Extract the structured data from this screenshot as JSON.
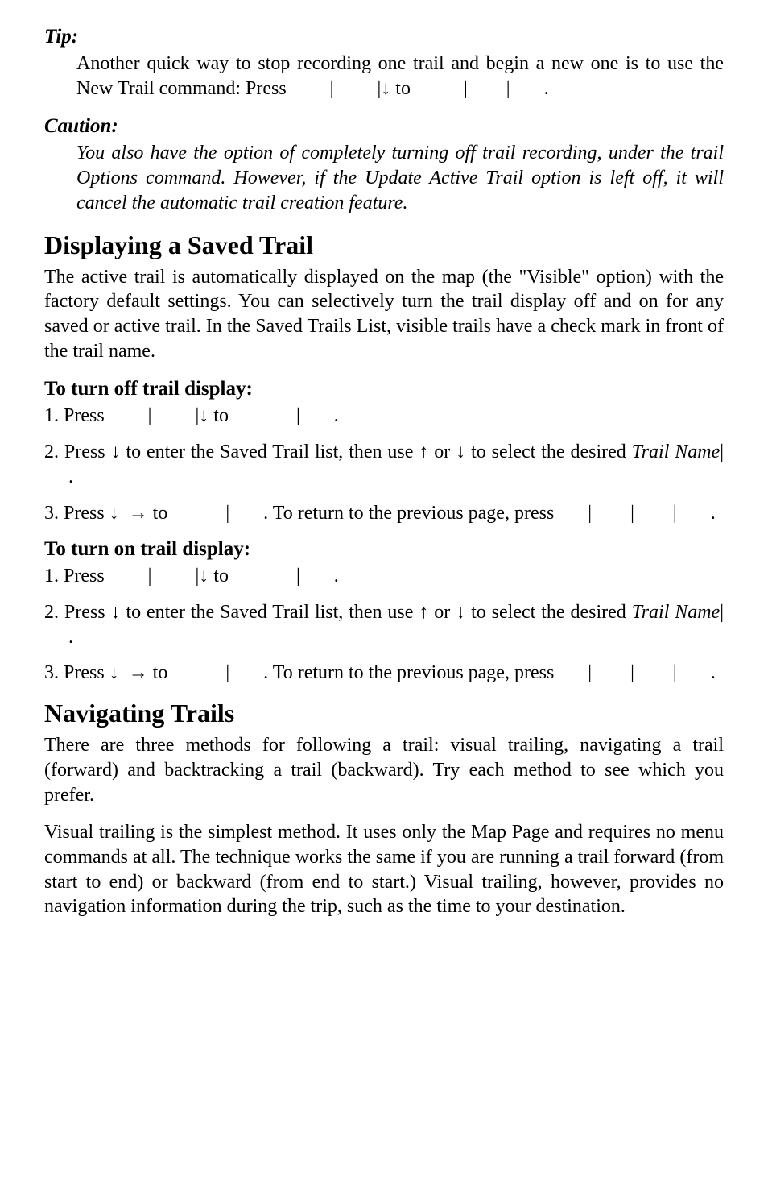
{
  "tip": {
    "label": "Tip:",
    "body_prefix": "Another quick way to stop recording one trail and begin a new one is to use the New Trail command: Press",
    "body_rest": "to"
  },
  "caution": {
    "label": "Caution:",
    "body": "You also have the option of completely turning off trail recording, under the trail Options command. However, if the Update Active Trail option is left off, it will cancel the automatic trail creation feature."
  },
  "section1": {
    "title": "Displaying a Saved Trail",
    "body": "The active trail is automatically displayed on the map (the \"Visible\" option) with the factory default settings. You can selectively turn the trail display off and on for any saved or active trail. In the Saved Trails List, visible trails have a check mark in front of the trail name.",
    "off": {
      "label": "To turn off trail display:",
      "step1_a": "1. Press",
      "step1_b": "to",
      "step2_a": "2. Press",
      "step2_b": "to enter the Saved Trail list, then use",
      "step2_c": "or",
      "step2_d": "to select the desired",
      "step2_name": "Trail Name",
      "step3_a": "3. Press",
      "step3_b": "to",
      "step3_c": ". To return to the previous page, press"
    },
    "on": {
      "label": "To turn on trail display:",
      "step1_a": "1. Press",
      "step1_b": "to",
      "step2_a": "2. Press",
      "step2_b": "to enter the Saved Trail list, then use",
      "step2_c": "or",
      "step2_d": "to select the desired",
      "step2_name": "Trail Name",
      "step3_a": "3. Press",
      "step3_b": "to",
      "step3_c": ". To return to the previous page, press"
    }
  },
  "section2": {
    "title": "Navigating Trails",
    "p1": "There are three methods for following a trail: visual trailing, navigating a trail (forward) and backtracking a trail (backward). Try each method to see which you prefer.",
    "p2": "Visual trailing is the simplest method. It uses only the Map Page and requires no menu commands at all. The technique works the same if you are running a trail forward (from start to end) or backward (from end to start.) Visual trailing, however, provides no navigation information during the trip, such as the time to your destination."
  },
  "glyphs": {
    "pipe": "|",
    "down": "↓",
    "up": "↑",
    "right": "→",
    "dot": "."
  }
}
